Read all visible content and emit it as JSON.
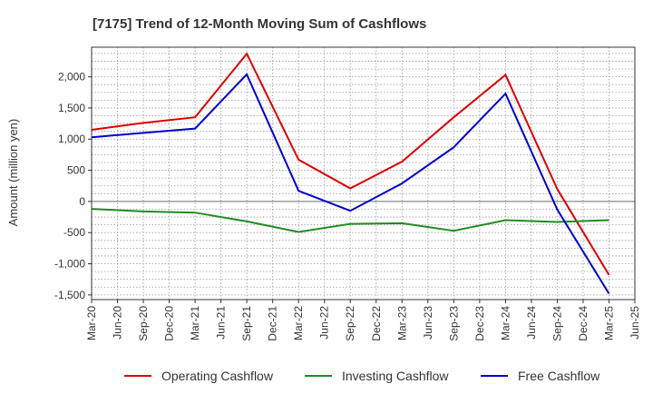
{
  "chart_data": {
    "type": "line",
    "title": "[7175]  Trend of 12-Month Moving Sum of Cashflows",
    "ylabel": "Amount (million yen)",
    "xlabel": "",
    "ylim": [
      -1575,
      2475
    ],
    "yticks": [
      2000,
      1500,
      1000,
      500,
      0,
      -500,
      -1000,
      -1500
    ],
    "ytick_labels": [
      "2,000",
      "1,500",
      "1,000",
      "500",
      "0",
      "-500",
      "-1,000",
      "-1,500"
    ],
    "x_labels": [
      "Mar-20",
      "Jun-20",
      "Sep-20",
      "Dec-20",
      "Mar-21",
      "Jun-21",
      "Sep-21",
      "Dec-21",
      "Mar-22",
      "Jun-22",
      "Sep-22",
      "Dec-22",
      "Mar-23",
      "Jun-23",
      "Sep-23",
      "Dec-23",
      "Mar-24",
      "Jun-24",
      "Sep-24",
      "Dec-24",
      "Mar-25",
      "Jun-25"
    ],
    "grid": true,
    "legend": "bottom",
    "series": [
      {
        "name": "Operating Cashflow",
        "color": "#dd0000",
        "points": [
          [
            "Mar-20",
            1150
          ],
          [
            "Sep-20",
            1260
          ],
          [
            "Mar-21",
            1350
          ],
          [
            "Sep-21",
            2370
          ],
          [
            "Mar-22",
            670
          ],
          [
            "Sep-22",
            210
          ],
          [
            "Mar-23",
            640
          ],
          [
            "Sep-23",
            1350
          ],
          [
            "Mar-24",
            2030
          ],
          [
            "Sep-24",
            200
          ],
          [
            "Mar-25",
            -1180
          ]
        ]
      },
      {
        "name": "Investing Cashflow",
        "color": "#228b22",
        "points": [
          [
            "Mar-20",
            -120
          ],
          [
            "Sep-20",
            -160
          ],
          [
            "Mar-21",
            -180
          ],
          [
            "Sep-21",
            -320
          ],
          [
            "Mar-22",
            -490
          ],
          [
            "Sep-22",
            -360
          ],
          [
            "Mar-23",
            -350
          ],
          [
            "Sep-23",
            -470
          ],
          [
            "Mar-24",
            -300
          ],
          [
            "Sep-24",
            -330
          ],
          [
            "Mar-25",
            -300
          ]
        ]
      },
      {
        "name": "Free Cashflow",
        "color": "#0000cc",
        "points": [
          [
            "Mar-20",
            1030
          ],
          [
            "Sep-20",
            1100
          ],
          [
            "Mar-21",
            1170
          ],
          [
            "Sep-21",
            2040
          ],
          [
            "Mar-22",
            170
          ],
          [
            "Sep-22",
            -150
          ],
          [
            "Mar-23",
            290
          ],
          [
            "Sep-23",
            870
          ],
          [
            "Mar-24",
            1730
          ],
          [
            "Sep-24",
            -130
          ],
          [
            "Mar-25",
            -1480
          ]
        ]
      }
    ]
  }
}
